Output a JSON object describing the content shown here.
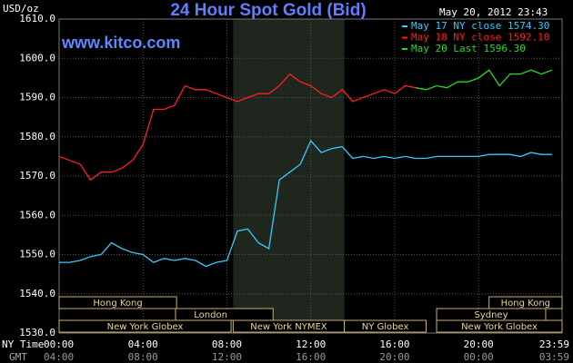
{
  "chart_data": {
    "type": "line",
    "title": "24 Hour Spot Gold (Bid)",
    "timestamp": "May 20, 2012 23:43",
    "watermark": "www.kitco.com",
    "y_label": "USD/oz",
    "x_label": "NY Time",
    "x2_label": "GMT",
    "x": [
      0,
      0.5,
      1,
      1.5,
      2,
      2.5,
      3,
      3.5,
      4,
      4.5,
      5,
      5.5,
      6,
      6.5,
      7,
      7.5,
      8,
      8.5,
      9,
      9.5,
      10,
      10.5,
      11,
      11.5,
      12,
      12.5,
      13,
      13.5,
      14,
      14.5,
      15,
      15.5,
      16,
      16.5,
      17,
      17.5,
      18,
      18.5,
      19,
      19.5,
      20,
      20.5,
      21,
      21.5,
      22,
      22.5,
      23,
      23.5
    ],
    "series": [
      {
        "name": "May 17 NY close 1574.30",
        "color": "#33ccff",
        "values": [
          1548,
          1548,
          1548.5,
          1549.5,
          1550,
          1553,
          1551.5,
          1550.5,
          1550,
          1548,
          1549,
          1548.5,
          1549,
          1548.5,
          1547,
          1548,
          1548.5,
          1556,
          1556.5,
          1553,
          1551.5,
          1569,
          1571,
          1573,
          1579,
          1576,
          1577,
          1577.5,
          1574.5,
          1575,
          1574.5,
          1575,
          1574.5,
          1575,
          1574.5,
          1574.5,
          1575,
          1575,
          1575,
          1575,
          1575,
          1575.5,
          1575.5,
          1575.5,
          1575,
          1576,
          1575.5,
          1575.5
        ]
      },
      {
        "name": "May 18 NY close 1592.10",
        "color": "#ff2020",
        "values": [
          1575,
          1574,
          1573,
          1569,
          1571,
          1571,
          1572,
          1574,
          1578,
          1587,
          1587,
          1588,
          1593,
          1592,
          1592,
          1591,
          1590,
          1589,
          1590,
          1591,
          1591,
          1593,
          1596,
          1594,
          1593,
          1591,
          1590,
          1592,
          1589,
          1590,
          1591,
          1592,
          1591,
          1593,
          1592.5,
          null,
          null,
          null,
          null,
          null,
          null,
          null,
          null,
          null,
          null,
          null,
          null,
          null
        ]
      },
      {
        "name": "May 20 Last 1596.30",
        "color": "#22dd22",
        "values": [
          null,
          null,
          null,
          null,
          null,
          null,
          null,
          null,
          null,
          null,
          null,
          null,
          null,
          null,
          null,
          null,
          null,
          null,
          null,
          null,
          null,
          null,
          null,
          null,
          null,
          null,
          null,
          null,
          null,
          null,
          null,
          null,
          null,
          null,
          1592.5,
          1592,
          1593,
          1592.5,
          1594,
          1594,
          1595,
          1597,
          1593,
          1596,
          1596,
          1597,
          1596,
          1597
        ]
      }
    ],
    "xlim": [
      0,
      23.983
    ],
    "xticks": [
      {
        "value": 0,
        "label": "00:00"
      },
      {
        "value": 4,
        "label": "04:00"
      },
      {
        "value": 8,
        "label": "08:00"
      },
      {
        "value": 12,
        "label": "12:00"
      },
      {
        "value": 16,
        "label": "16:00"
      },
      {
        "value": 20,
        "label": "20:00"
      },
      {
        "value": 23.983,
        "label": "23:59"
      }
    ],
    "x2ticks": [
      "04:00",
      "08:00",
      "12:00",
      "16:00",
      "20:00",
      "00:00",
      "03:59"
    ],
    "ylim": [
      1530,
      1610
    ],
    "yticks": [
      {
        "value": 1530,
        "label": "1530.0"
      },
      {
        "value": 1540,
        "label": "1540.0"
      },
      {
        "value": 1550,
        "label": "1550.0"
      },
      {
        "value": 1560,
        "label": "1560.0"
      },
      {
        "value": 1570,
        "label": "1570.0"
      },
      {
        "value": 1580,
        "label": "1580.0"
      },
      {
        "value": 1590,
        "label": "1590.0"
      },
      {
        "value": 1600,
        "label": "1600.0"
      },
      {
        "value": 1610,
        "label": "1610.0"
      }
    ],
    "grid": true,
    "sessions": [
      {
        "label": "Hong Kong",
        "start": 0,
        "end": 5.6
      },
      {
        "label": "Hong Kong",
        "start": 20.5,
        "end": 23.983
      },
      {
        "label": "London",
        "start": 5.55,
        "end": 10.2
      },
      {
        "label": "Sydney",
        "start": 18,
        "end": 23.2
      },
      {
        "label": "New York Globex",
        "start": 0,
        "end": 8.2
      },
      {
        "label": "New York NYMEX",
        "start": 8.3,
        "end": 13.6
      },
      {
        "label": "NY Globex",
        "start": 13.6,
        "end": 17.5
      },
      {
        "label": "New York Globex",
        "start": 18,
        "end": 23.983
      }
    ]
  }
}
